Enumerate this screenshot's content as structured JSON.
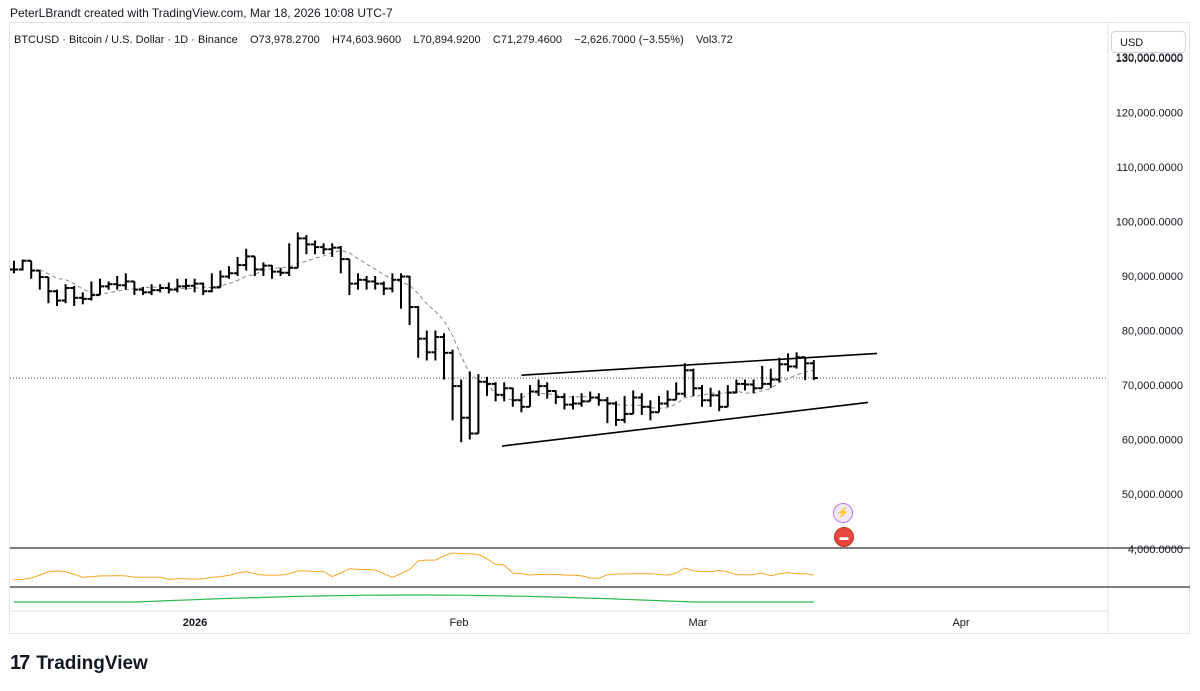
{
  "header": {
    "attribution": "PeterLBrandt created with TradingView.com, Mar 18, 2026 10:08 UTC-7"
  },
  "symbol": {
    "name": "BTCUSD · Bitcoin / U.S. Dollar · 1D · Binance",
    "open": "O73,978.2700",
    "high": "H74,603.9600",
    "low": "L70,894.9200",
    "close": "C71,279.4600",
    "change": "−2,626.7000 (−3.55%)",
    "volume": "Vol3.72"
  },
  "currency_button": "USD",
  "footer": {
    "brand": "TradingView",
    "mark": "17"
  },
  "colors": {
    "candle": "#000000",
    "ma": "#888888",
    "osc1": "#f5a623",
    "osc2": "#2db84d",
    "grid": "#e0e3eb"
  },
  "chart_data": {
    "type": "ohlc",
    "y_axis": {
      "ticks": [
        60000,
        70000,
        80000,
        90000,
        100000,
        110000,
        120000,
        130000
      ],
      "tick_labels": [
        "60,000.0000",
        "70,000.0000",
        "80,000.0000",
        "90,000.0000",
        "100,000.0000",
        "110,000.0000",
        "120,000.0000",
        "130,000.0000"
      ],
      "lower_labels": [
        "50,000.0000",
        "4,000.0000"
      ],
      "ylim": [
        46000,
        134000
      ]
    },
    "x_axis": {
      "labels": [
        "2026",
        "Feb",
        "Mar",
        "Apr"
      ]
    },
    "last_price": 71279.46,
    "closes": [
      91200,
      92800,
      91000,
      89800,
      87200,
      85500,
      87800,
      86000,
      85800,
      86500,
      88100,
      88500,
      88300,
      89000,
      87500,
      87000,
      87400,
      87800,
      87500,
      88100,
      88200,
      88600,
      87200,
      87900,
      89900,
      90500,
      92000,
      93600,
      91200,
      91900,
      90800,
      90600,
      91500,
      96900,
      95800,
      95300,
      94900,
      95200,
      93100,
      88600,
      89300,
      89000,
      88600,
      87700,
      89300,
      89900,
      84300,
      78500,
      76000,
      78800,
      75900,
      69800,
      64000,
      61100,
      70600,
      70200,
      68200,
      69400,
      67200,
      66000,
      68800,
      69800,
      68900,
      67800,
      66400,
      66600,
      67000,
      67700,
      67200,
      66600,
      63600,
      64700,
      67700,
      66000,
      65000,
      66600,
      67300,
      68400,
      72700,
      69400,
      67200,
      68100,
      66000,
      68600,
      70200,
      70100,
      69400,
      70200,
      71000,
      73800,
      73400,
      75100,
      73980,
      71279
    ],
    "highs": [
      92800,
      93000,
      92500,
      90500,
      88500,
      87500,
      88500,
      88200,
      87000,
      89000,
      89500,
      89000,
      90000,
      90500,
      89000,
      88000,
      88500,
      88500,
      88800,
      89500,
      89500,
      89500,
      88800,
      90500,
      91000,
      91800,
      93500,
      95000,
      93000,
      92500,
      92000,
      91500,
      96000,
      98000,
      97500,
      96500,
      96000,
      96000,
      95500,
      93000,
      90500,
      90000,
      90000,
      89000,
      90500,
      90500,
      90000,
      84500,
      80000,
      80000,
      79500,
      76500,
      71000,
      72500,
      72000,
      71500,
      70500,
      70500,
      69500,
      68500,
      70000,
      71000,
      70500,
      69000,
      68500,
      68000,
      68500,
      68800,
      68500,
      67800,
      67000,
      68000,
      69000,
      68500,
      67200,
      68000,
      69000,
      70500,
      74000,
      73000,
      70000,
      69500,
      69000,
      70000,
      71000,
      71000,
      71000,
      73500,
      73000,
      75000,
      75800,
      76000,
      74600,
      74600
    ],
    "lows": [
      90500,
      91000,
      89500,
      87500,
      85000,
      84500,
      85000,
      84500,
      84800,
      85500,
      87000,
      87500,
      87500,
      87500,
      86500,
      86500,
      86500,
      87000,
      86800,
      87000,
      87500,
      87000,
      86500,
      87000,
      88500,
      89500,
      90000,
      91000,
      90000,
      90000,
      89500,
      90000,
      90000,
      94000,
      94000,
      94000,
      94000,
      93500,
      90500,
      86500,
      87500,
      87500,
      87500,
      86500,
      87000,
      84000,
      81000,
      75000,
      74500,
      74500,
      71000,
      63500,
      59500,
      60000,
      65000,
      68000,
      67000,
      67000,
      66000,
      65000,
      66500,
      68000,
      67500,
      66500,
      65500,
      65500,
      66000,
      67000,
      66200,
      63000,
      62500,
      63000,
      65500,
      64500,
      63500,
      65500,
      66000,
      67500,
      67800,
      68000,
      66000,
      66000,
      65200,
      66500,
      68500,
      69000,
      68500,
      69500,
      69500,
      70500,
      72500,
      73000,
      70900,
      70900
    ],
    "indicators": [
      "moving-average",
      "oscillator-1",
      "oscillator-2"
    ]
  }
}
